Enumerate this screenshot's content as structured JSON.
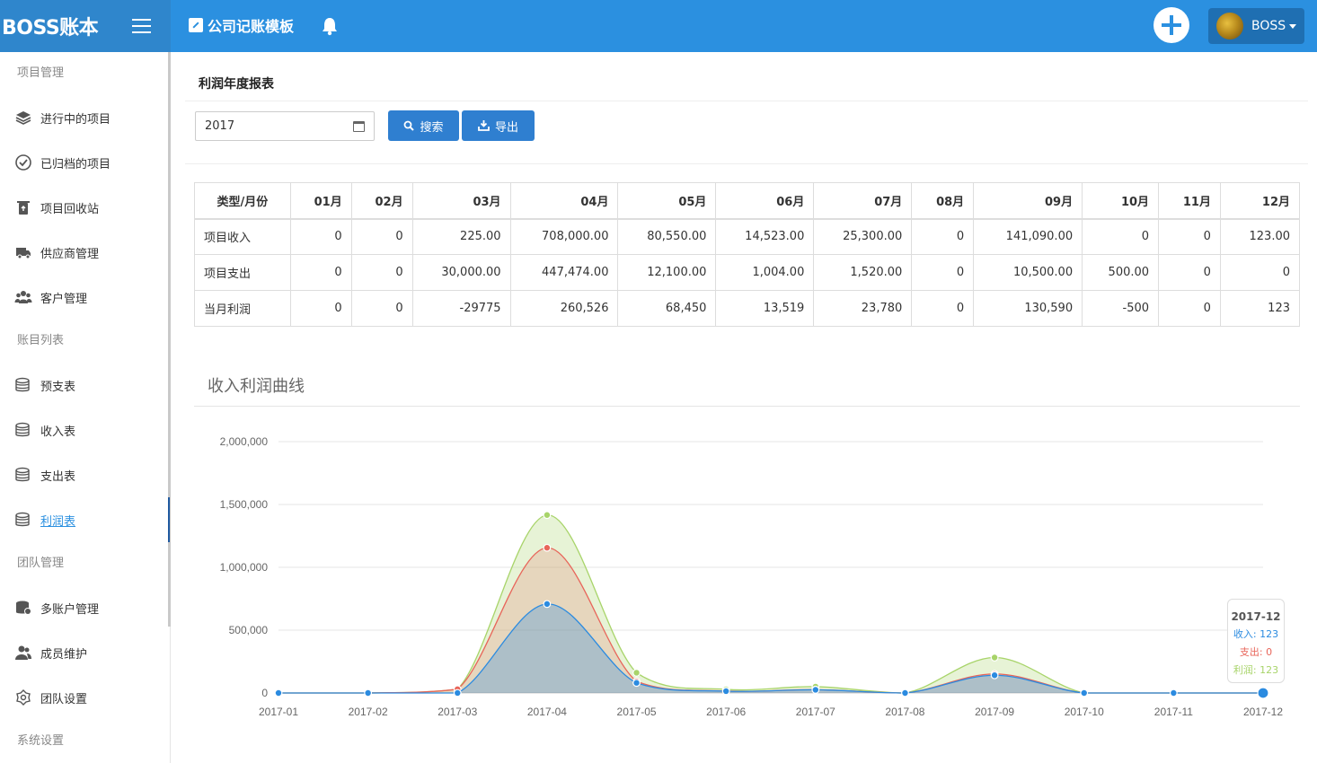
{
  "brand": "BOSS账本",
  "header": {
    "app_title": "公司记账模板",
    "user_name": "BOSS"
  },
  "sidebar": {
    "groups": [
      {
        "title": "项目管理",
        "items": [
          {
            "label": "进行中的项目",
            "icon": "layers-icon"
          },
          {
            "label": "已归档的项目",
            "icon": "check-circle-icon"
          },
          {
            "label": "项目回收站",
            "icon": "recycle-bin-icon"
          },
          {
            "label": "供应商管理",
            "icon": "truck-icon"
          },
          {
            "label": "客户管理",
            "icon": "users-icon"
          }
        ]
      },
      {
        "title": "账目列表",
        "items": [
          {
            "label": "预支表",
            "icon": "database-icon"
          },
          {
            "label": "收入表",
            "icon": "database-icon"
          },
          {
            "label": "支出表",
            "icon": "database-icon"
          },
          {
            "label": "利润表",
            "icon": "database-icon",
            "active": true
          }
        ]
      },
      {
        "title": "团队管理",
        "items": [
          {
            "label": "多账户管理",
            "icon": "database-user-icon"
          },
          {
            "label": "成员维护",
            "icon": "user-group-icon"
          },
          {
            "label": "团队设置",
            "icon": "settings-icon"
          }
        ]
      },
      {
        "title": "系统设置",
        "items": []
      }
    ]
  },
  "page": {
    "title": "利润年度报表",
    "year_value": "2017",
    "search_label": "搜索",
    "export_label": "导出"
  },
  "table": {
    "headers": [
      "类型/月份",
      "01月",
      "02月",
      "03月",
      "04月",
      "05月",
      "06月",
      "07月",
      "08月",
      "09月",
      "10月",
      "11月",
      "12月"
    ],
    "rows": [
      [
        "项目收入",
        "0",
        "0",
        "225.00",
        "708,000.00",
        "80,550.00",
        "14,523.00",
        "25,300.00",
        "0",
        "141,090.00",
        "0",
        "0",
        "123.00"
      ],
      [
        "项目支出",
        "0",
        "0",
        "30,000.00",
        "447,474.00",
        "12,100.00",
        "1,004.00",
        "1,520.00",
        "0",
        "10,500.00",
        "500.00",
        "0",
        "0"
      ],
      [
        "当月利润",
        "0",
        "0",
        "-29775",
        "260,526",
        "68,450",
        "13,519",
        "23,780",
        "0",
        "130,590",
        "-500",
        "0",
        "123"
      ]
    ]
  },
  "chart_title": "收入利润曲线",
  "colors": {
    "income": "#2b8be0",
    "expense": "#e8655a",
    "profit": "#a8d46a"
  },
  "chart_data": {
    "type": "area",
    "stacked": true,
    "x": [
      "2017-01",
      "2017-02",
      "2017-03",
      "2017-04",
      "2017-05",
      "2017-06",
      "2017-07",
      "2017-08",
      "2017-09",
      "2017-10",
      "2017-11",
      "2017-12"
    ],
    "series": [
      {
        "name": "收入",
        "values": [
          0,
          0,
          225,
          708000,
          80550,
          14523,
          25300,
          0,
          141090,
          0,
          0,
          123
        ]
      },
      {
        "name": "支出",
        "values": [
          0,
          0,
          30000,
          447474,
          12100,
          1004,
          1520,
          0,
          10500,
          500,
          0,
          0
        ]
      },
      {
        "name": "利润",
        "values": [
          0,
          0,
          -29775,
          260526,
          68450,
          13519,
          23780,
          0,
          130590,
          -500,
          0,
          123
        ]
      }
    ],
    "yticks": [
      "0",
      "500,000",
      "1,000,000",
      "1,500,000",
      "2,000,000"
    ],
    "ylim": [
      0,
      2000000
    ],
    "grid": true,
    "tooltip": {
      "date": "2017-12",
      "lines": [
        "收入: 123",
        "支出: 0",
        "利润: 123"
      ]
    }
  }
}
